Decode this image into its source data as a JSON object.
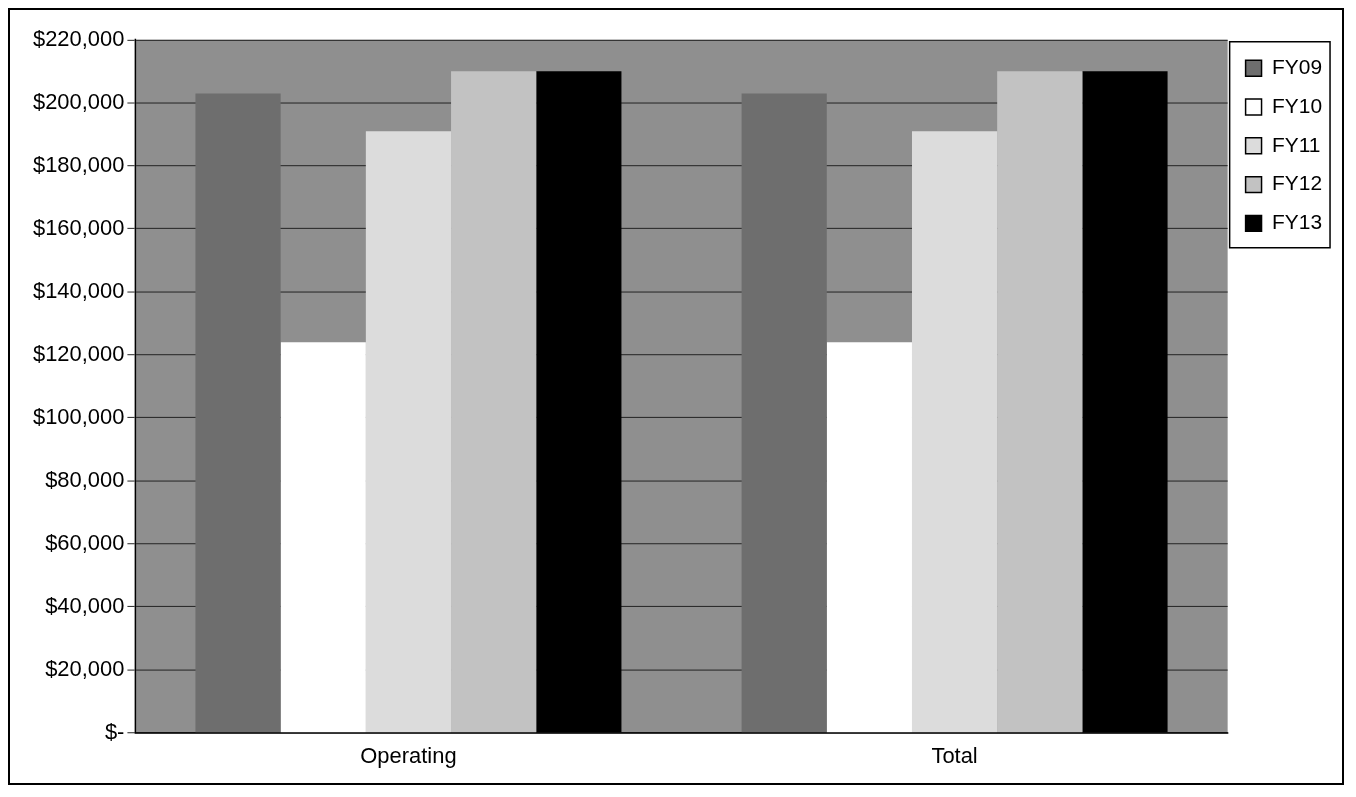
{
  "chart_data": {
    "type": "bar",
    "categories": [
      "Operating",
      "Total"
    ],
    "series": [
      {
        "name": "FY09",
        "color": "#6e6e6e",
        "values": [
          203000,
          203000
        ]
      },
      {
        "name": "FY10",
        "color": "#ffffff",
        "values": [
          124000,
          124000
        ]
      },
      {
        "name": "FY11",
        "color": "#dcdcdc",
        "values": [
          191000,
          191000
        ]
      },
      {
        "name": "FY12",
        "color": "#c2c2c2",
        "values": [
          210000,
          210000
        ]
      },
      {
        "name": "FY13",
        "color": "#000000",
        "values": [
          210000,
          210000
        ]
      }
    ],
    "ylim": [
      0,
      220000
    ],
    "yticks": [
      {
        "value": 0,
        "label": "$-"
      },
      {
        "value": 20000,
        "label": "$20,000"
      },
      {
        "value": 40000,
        "label": "$40,000"
      },
      {
        "value": 60000,
        "label": "$60,000"
      },
      {
        "value": 80000,
        "label": "$80,000"
      },
      {
        "value": 100000,
        "label": "$100,000"
      },
      {
        "value": 120000,
        "label": "$120,000"
      },
      {
        "value": 140000,
        "label": "$140,000"
      },
      {
        "value": 160000,
        "label": "$160,000"
      },
      {
        "value": 180000,
        "label": "$180,000"
      },
      {
        "value": 200000,
        "label": "$200,000"
      },
      {
        "value": 220000,
        "label": "$220,000"
      }
    ],
    "grid": "y",
    "legend": "right"
  }
}
